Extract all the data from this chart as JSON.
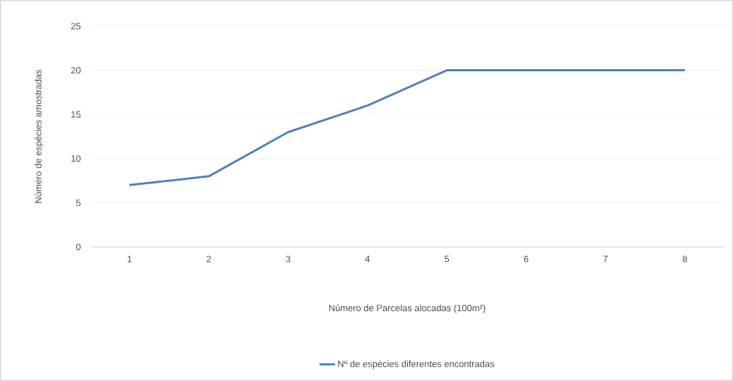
{
  "chart_data": {
    "type": "line",
    "xlabel": "Número de Parcelas alocadas (100m²)",
    "ylabel": "Número de espécies amostradas",
    "categories": [
      "1",
      "2",
      "3",
      "4",
      "5",
      "6",
      "7",
      "8"
    ],
    "series": [
      {
        "name": "Nº de espécies diferentes encontradas",
        "color": "#4f81bd",
        "values": [
          7,
          8,
          13,
          16,
          20,
          20,
          20,
          20
        ]
      }
    ],
    "ylim": [
      0,
      25
    ],
    "yticks": [
      0,
      5,
      10,
      15,
      20,
      25
    ],
    "grid": "y",
    "legend": "bottom"
  }
}
